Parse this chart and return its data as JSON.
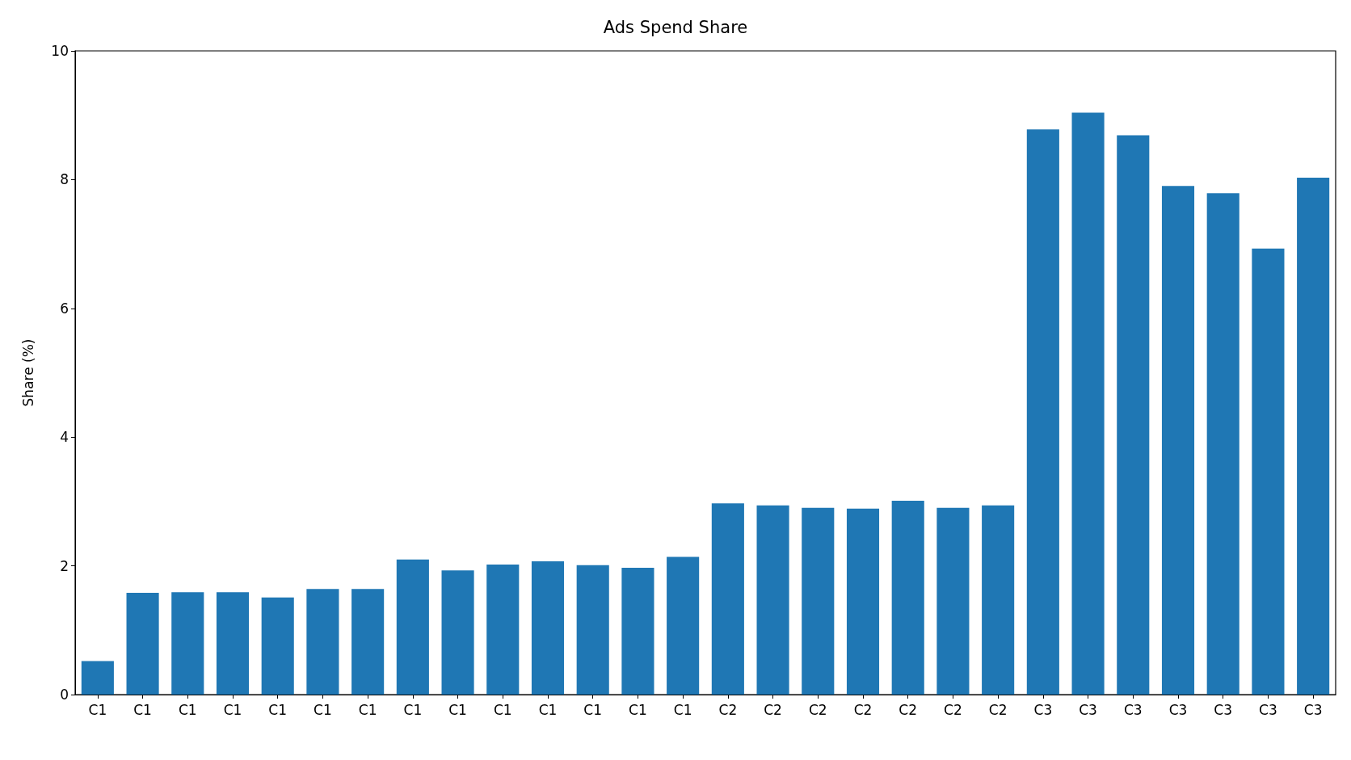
{
  "chart_data": {
    "type": "bar",
    "title": "Ads Spend Share",
    "ylabel": "Share (%)",
    "categories": [
      "C1",
      "C1",
      "C1",
      "C1",
      "C1",
      "C1",
      "C1",
      "C1",
      "C1",
      "C1",
      "C1",
      "C1",
      "C1",
      "C1",
      "C2",
      "C2",
      "C2",
      "C2",
      "C2",
      "C2",
      "C2",
      "C3",
      "C3",
      "C3",
      "C3",
      "C3",
      "C3",
      "C3"
    ],
    "values": [
      0.52,
      1.58,
      1.59,
      1.59,
      1.51,
      1.64,
      1.64,
      2.1,
      1.93,
      2.02,
      2.07,
      2.01,
      1.97,
      2.14,
      2.97,
      2.94,
      2.9,
      2.89,
      3.01,
      2.9,
      2.94,
      8.78,
      9.04,
      8.69,
      7.9,
      7.79,
      6.93,
      8.03
    ],
    "color": "#1f77b4",
    "ylim": [
      0,
      10
    ],
    "yticks": [
      0,
      2,
      4,
      6,
      8,
      10
    ],
    "grid": false
  }
}
